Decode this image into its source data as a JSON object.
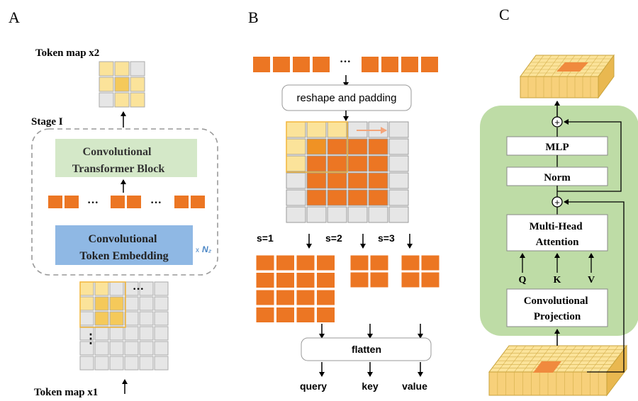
{
  "panels": {
    "a": {
      "letter": "A",
      "top_label": "Token map x2",
      "stage_label": "Stage I",
      "transformer_block": [
        "Convolutional",
        "Transformer Block"
      ],
      "token_embedding": [
        "Convolutional",
        "Token Embedding"
      ],
      "repeat_prefix": "x",
      "repeat_count": "N₂",
      "dots": "···",
      "vdots": "⋮",
      "bottom_label": "Token map x1"
    },
    "b": {
      "letter": "B",
      "dots": "···",
      "reshape_label": "reshape and padding",
      "stride_labels": [
        "s=1",
        "s=2",
        "s=3"
      ],
      "flatten_label": "flatten",
      "outputs": [
        "query",
        "key",
        "value"
      ]
    },
    "c": {
      "letter": "C",
      "mlp_label": "MLP",
      "norm_label": "Norm",
      "attention_label": [
        "Multi-Head",
        "Attention"
      ],
      "qkv": [
        "Q",
        "K",
        "V"
      ],
      "projection_label": [
        "Convolutional",
        "Projection"
      ],
      "plus_symbol": "+"
    }
  },
  "colors": {
    "orange": "#ec7623",
    "orange_dark": "#c85a10",
    "light_yellow": "#fbe39a",
    "yellow_mid": "#f5c95a",
    "grid_gray": "#e6e6e6",
    "green_box": "#d4e8c8",
    "blue_box": "#8fb8e4",
    "green_panel": "#bedca6",
    "highlight_border": "#f2b53a"
  }
}
